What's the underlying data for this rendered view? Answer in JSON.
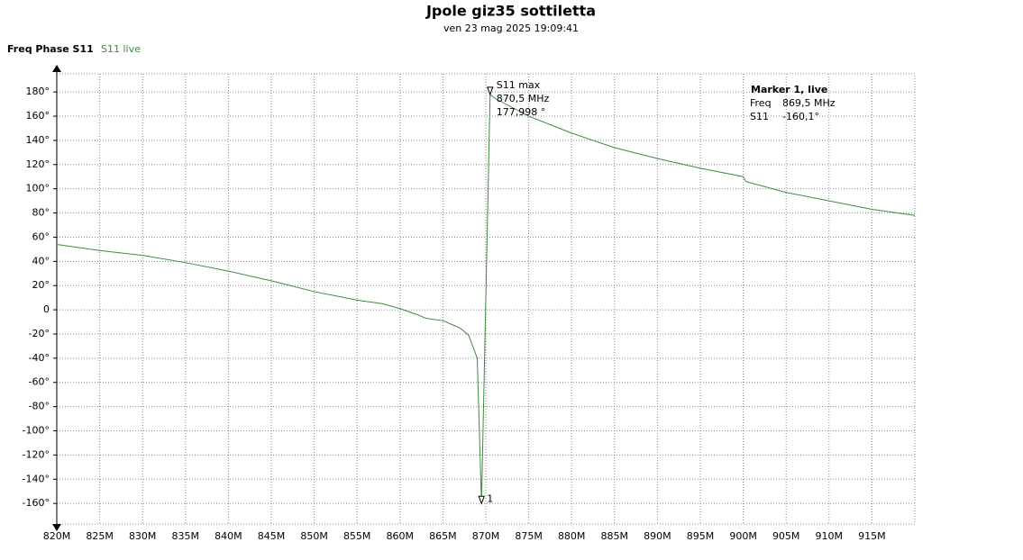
{
  "chart_data": {
    "type": "line",
    "title": "Jpole giz35 sottiletta",
    "subtitle": "ven 23 mag 2025 19:09:41",
    "y_label": "Freq Phase S11",
    "x": [
      820,
      825,
      830,
      835,
      840,
      845,
      850,
      855,
      858,
      860,
      862,
      863,
      865,
      866,
      867,
      868,
      869,
      869.5,
      870.5,
      871,
      875,
      880,
      885,
      890,
      895,
      900,
      900.3,
      905,
      910,
      915,
      920
    ],
    "series": [
      {
        "name": "S11 live",
        "color": "#3f8a3f",
        "values": [
          54,
          49,
          45,
          39,
          32,
          24,
          15,
          8,
          5,
          1,
          -4,
          -7,
          -9,
          -12,
          -15,
          -21,
          -40,
          -160.1,
          177.998,
          175,
          160,
          146,
          134,
          125,
          117,
          110,
          106,
          97,
          90,
          83,
          78
        ]
      }
    ],
    "xlim": [
      820,
      920
    ],
    "ylim": [
      -177,
      195
    ],
    "xticks": [
      {
        "value": 820,
        "label": "820M"
      },
      {
        "value": 825,
        "label": "825M"
      },
      {
        "value": 830,
        "label": "830M"
      },
      {
        "value": 835,
        "label": "835M"
      },
      {
        "value": 840,
        "label": "840M"
      },
      {
        "value": 845,
        "label": "845M"
      },
      {
        "value": 850,
        "label": "850M"
      },
      {
        "value": 855,
        "label": "855M"
      },
      {
        "value": 860,
        "label": "860M"
      },
      {
        "value": 865,
        "label": "865M"
      },
      {
        "value": 870,
        "label": "870M"
      },
      {
        "value": 875,
        "label": "875M"
      },
      {
        "value": 880,
        "label": "880M"
      },
      {
        "value": 885,
        "label": "885M"
      },
      {
        "value": 890,
        "label": "890M"
      },
      {
        "value": 895,
        "label": "895M"
      },
      {
        "value": 900,
        "label": "900M"
      },
      {
        "value": 905,
        "label": "905M"
      },
      {
        "value": 910,
        "label": "910M"
      },
      {
        "value": 915,
        "label": "915M"
      }
    ],
    "yticks": [
      {
        "value": 180,
        "label": "180°"
      },
      {
        "value": 160,
        "label": "160°"
      },
      {
        "value": 140,
        "label": "140°"
      },
      {
        "value": 120,
        "label": "120°"
      },
      {
        "value": 100,
        "label": "100°"
      },
      {
        "value": 80,
        "label": "80°"
      },
      {
        "value": 60,
        "label": "60°"
      },
      {
        "value": 40,
        "label": "40°"
      },
      {
        "value": 20,
        "label": "20°"
      },
      {
        "value": 0,
        "label": "0"
      },
      {
        "value": -20,
        "label": "-20°"
      },
      {
        "value": -40,
        "label": "-40°"
      },
      {
        "value": -60,
        "label": "-60°"
      },
      {
        "value": -80,
        "label": "-80°"
      },
      {
        "value": -100,
        "label": "-100°"
      },
      {
        "value": -120,
        "label": "-120°"
      },
      {
        "value": -140,
        "label": "-140°"
      },
      {
        "value": -160,
        "label": "-160°"
      }
    ],
    "grid": true,
    "markers": [
      {
        "label": "S11 max",
        "x": 870.5,
        "y": 177.998,
        "freq": "870,5 MHz",
        "value": "177,998 °"
      },
      {
        "label": "1",
        "x": 869.5,
        "y": -160.1
      }
    ],
    "marker_box": {
      "title": "Marker 1, live",
      "rows": [
        [
          "Freq",
          "869,5 MHz"
        ],
        [
          "S11",
          "-160,1°"
        ]
      ]
    }
  }
}
